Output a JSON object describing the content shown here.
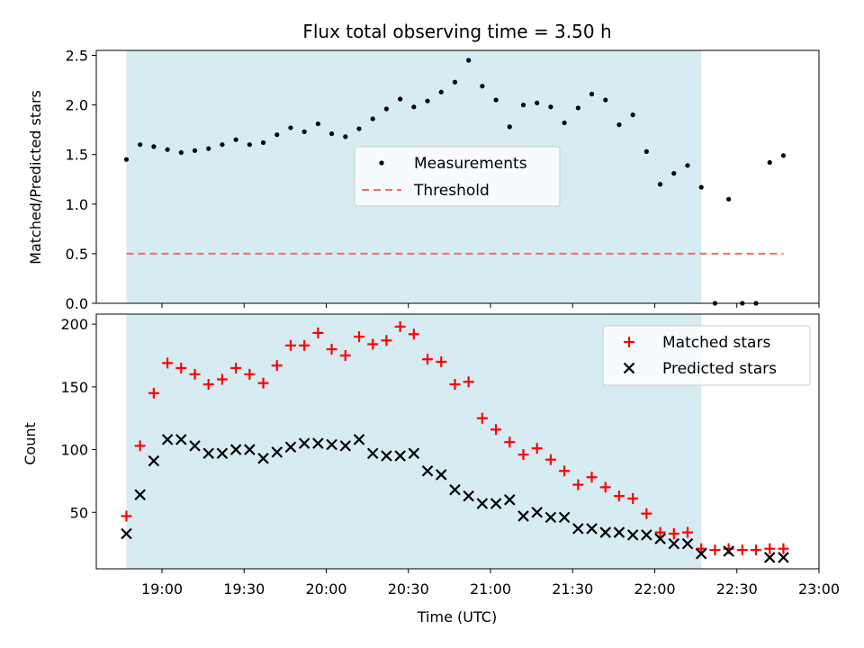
{
  "chart_data": [
    {
      "type": "scatter",
      "title": "Flux total observing time = 3.50 h",
      "xlabel": "",
      "ylabel": "Matched/Predicted stars",
      "xlim": [
        "18:36",
        "23:00"
      ],
      "ylim": [
        0,
        2.55
      ],
      "yticks": [
        0.0,
        0.5,
        1.0,
        1.5,
        2.0,
        2.5
      ],
      "yticklabels": [
        "0.0",
        "0.5",
        "1.0",
        "1.5",
        "2.0",
        "2.5"
      ],
      "shaded_interval": [
        "18:47",
        "22:17"
      ],
      "shade_color": "#add8e6",
      "legend_position": "center",
      "series": [
        {
          "name": "Measurements",
          "kind": "points",
          "color": "#000000",
          "x": [
            "18:47",
            "18:52",
            "18:57",
            "19:02",
            "19:07",
            "19:12",
            "19:17",
            "19:22",
            "19:27",
            "19:32",
            "19:37",
            "19:42",
            "19:47",
            "19:52",
            "19:57",
            "20:02",
            "20:07",
            "20:12",
            "20:17",
            "20:22",
            "20:27",
            "20:32",
            "20:37",
            "20:42",
            "20:47",
            "20:52",
            "20:57",
            "21:02",
            "21:07",
            "21:12",
            "21:17",
            "21:22",
            "21:27",
            "21:32",
            "21:37",
            "21:42",
            "21:47",
            "21:52",
            "21:57",
            "22:02",
            "22:07",
            "22:12",
            "22:17",
            "22:22",
            "22:27",
            "22:32",
            "22:37",
            "22:42",
            "22:47"
          ],
          "y": [
            1.45,
            1.6,
            1.58,
            1.55,
            1.52,
            1.54,
            1.56,
            1.6,
            1.65,
            1.6,
            1.62,
            1.7,
            1.77,
            1.73,
            1.81,
            1.71,
            1.68,
            1.76,
            1.86,
            1.96,
            2.06,
            1.98,
            2.04,
            2.13,
            2.23,
            2.45,
            2.19,
            2.05,
            1.78,
            2.0,
            2.02,
            1.98,
            1.82,
            1.97,
            2.11,
            2.05,
            1.8,
            1.9,
            1.53,
            1.2,
            1.31,
            1.39,
            1.17,
            0.0,
            1.05,
            0.0,
            0.0,
            1.42,
            1.49
          ]
        },
        {
          "name": "Threshold",
          "kind": "dashed-line",
          "color": "#ff6666",
          "x": [
            "18:47",
            "22:47"
          ],
          "y": [
            0.5,
            0.5
          ]
        }
      ]
    },
    {
      "type": "scatter",
      "title": "",
      "xlabel": "Time (UTC)",
      "ylabel": "Count",
      "xlim": [
        "18:36",
        "23:00"
      ],
      "ylim": [
        5,
        208
      ],
      "xticks": [
        "19:00",
        "19:30",
        "20:00",
        "20:30",
        "21:00",
        "21:30",
        "22:00",
        "22:30",
        "23:00"
      ],
      "yticks": [
        50,
        100,
        150,
        200
      ],
      "yticklabels": [
        "50",
        "100",
        "150",
        "200"
      ],
      "shaded_interval": [
        "18:47",
        "22:17"
      ],
      "shade_color": "#add8e6",
      "legend_position": "upper right",
      "series": [
        {
          "name": "Matched stars",
          "marker": "plus",
          "color": "#ff0000",
          "x": [
            "18:47",
            "18:52",
            "18:57",
            "19:02",
            "19:07",
            "19:12",
            "19:17",
            "19:22",
            "19:27",
            "19:32",
            "19:37",
            "19:42",
            "19:47",
            "19:52",
            "19:57",
            "20:02",
            "20:07",
            "20:12",
            "20:17",
            "20:22",
            "20:27",
            "20:32",
            "20:37",
            "20:42",
            "20:47",
            "20:52",
            "20:57",
            "21:02",
            "21:07",
            "21:12",
            "21:17",
            "21:22",
            "21:27",
            "21:32",
            "21:37",
            "21:42",
            "21:47",
            "21:52",
            "21:57",
            "22:02",
            "22:07",
            "22:12",
            "22:17",
            "22:22",
            "22:27",
            "22:32",
            "22:37",
            "22:42",
            "22:47"
          ],
          "y": [
            47,
            103,
            145,
            169,
            165,
            160,
            152,
            156,
            165,
            160,
            153,
            167,
            183,
            183,
            193,
            180,
            175,
            190,
            184,
            187,
            198,
            192,
            172,
            170,
            152,
            154,
            125,
            116,
            106,
            96,
            101,
            92,
            83,
            72,
            78,
            70,
            63,
            61,
            49,
            34,
            33,
            34,
            21,
            20,
            21,
            20,
            20,
            21,
            21
          ]
        },
        {
          "name": "Predicted stars",
          "marker": "x",
          "color": "#000000",
          "x": [
            "18:47",
            "18:52",
            "18:57",
            "19:02",
            "19:07",
            "19:12",
            "19:17",
            "19:22",
            "19:27",
            "19:32",
            "19:37",
            "19:42",
            "19:47",
            "19:52",
            "19:57",
            "20:02",
            "20:07",
            "20:12",
            "20:17",
            "20:22",
            "20:27",
            "20:32",
            "20:37",
            "20:42",
            "20:47",
            "20:52",
            "20:57",
            "21:02",
            "21:07",
            "21:12",
            "21:17",
            "21:22",
            "21:27",
            "21:32",
            "21:37",
            "21:42",
            "21:47",
            "21:52",
            "21:57",
            "22:02",
            "22:07",
            "22:12",
            "22:17",
            "22:27",
            "22:42",
            "22:47"
          ],
          "y": [
            33,
            64,
            91,
            108,
            108,
            103,
            97,
            97,
            100,
            100,
            93,
            98,
            102,
            105,
            105,
            104,
            103,
            108,
            97,
            95,
            95,
            97,
            83,
            80,
            68,
            63,
            57,
            57,
            60,
            47,
            50,
            46,
            46,
            37,
            37,
            34,
            34,
            32,
            32,
            29,
            25,
            25,
            17,
            19,
            14,
            14
          ]
        }
      ]
    }
  ]
}
